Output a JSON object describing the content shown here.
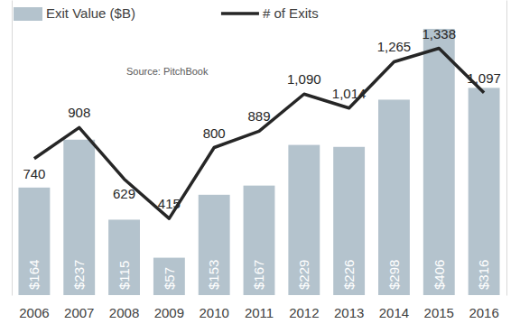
{
  "chart_data": {
    "type": "bar",
    "categories": [
      "2006",
      "2007",
      "2008",
      "2009",
      "2010",
      "2011",
      "2012",
      "2013",
      "2014",
      "2015",
      "2016"
    ],
    "series": [
      {
        "name": "Exit Value ($B)",
        "type": "bar",
        "color": "#b4c3cd",
        "values": [
          164,
          237,
          115,
          57,
          153,
          167,
          229,
          226,
          298,
          406,
          316
        ],
        "value_labels": [
          "$164",
          "$237",
          "$115",
          "$57",
          "$153",
          "$167",
          "$229",
          "$226",
          "$298",
          "$406",
          "$316"
        ]
      },
      {
        "name": "# of Exits",
        "type": "line",
        "color": "#262626",
        "axis": "y2",
        "values": [
          740,
          908,
          629,
          415,
          800,
          889,
          1090,
          1014,
          1265,
          1338,
          1097
        ],
        "value_labels": [
          "740",
          "908",
          "629",
          "415",
          "800",
          "889",
          "1,090",
          "1,014",
          "1,265",
          "1,338",
          "1,097"
        ]
      }
    ],
    "ylim": [
      0,
      450
    ],
    "y2lim": [
      0,
      1600
    ],
    "data_labels": true,
    "tick_labels": "x",
    "legend": "top",
    "annotations": [
      "Source: PitchBook"
    ]
  }
}
